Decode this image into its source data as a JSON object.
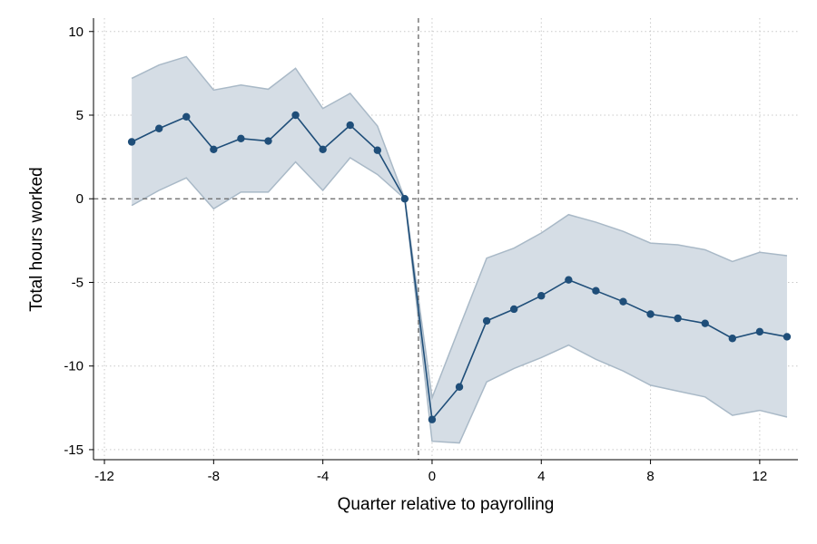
{
  "chart_data": {
    "type": "line",
    "xlabel": "Quarter relative to payrolling",
    "ylabel": "Total hours worked",
    "xlim": [
      -12.4,
      13.4
    ],
    "ylim": [
      -15.6,
      10.8
    ],
    "xticks": [
      -12,
      -8,
      -4,
      0,
      4,
      8,
      12
    ],
    "yticks": [
      10,
      5,
      0,
      -5,
      -10,
      -15
    ],
    "xtick_labels": [
      "-12",
      "-8",
      "-4",
      "0",
      "4",
      "8",
      "12"
    ],
    "ytick_labels": [
      "10",
      "5",
      "0",
      "-5",
      "-10",
      "-15"
    ],
    "vertical_reference_x": -0.5,
    "horizontal_reference_y": 0,
    "grid": true,
    "colors": {
      "line": "#1f4e79",
      "band_fill": "#d5dde5",
      "band_edge": "#a9b9c7",
      "reference": "#666666"
    },
    "series": [
      {
        "x": [
          -11,
          -10,
          -9,
          -8,
          -7,
          -6,
          -5,
          -4,
          -3,
          -2,
          -1,
          0,
          1,
          2,
          3,
          4,
          5,
          6,
          7,
          8,
          9,
          10,
          11,
          12,
          13
        ],
        "values": [
          3.4,
          4.2,
          4.9,
          2.95,
          3.6,
          3.45,
          5.0,
          2.95,
          4.4,
          2.9,
          0.0,
          -13.2,
          -11.25,
          -7.3,
          -6.6,
          -5.8,
          -4.85,
          -5.5,
          -6.15,
          -6.9,
          -7.15,
          -7.45,
          -8.35,
          -7.95,
          -8.25
        ],
        "ci_upper": [
          7.2,
          8.0,
          8.5,
          6.5,
          6.8,
          6.55,
          7.8,
          5.4,
          6.3,
          4.35,
          0.0,
          -11.9,
          -7.7,
          -3.55,
          -2.95,
          -2.05,
          -0.95,
          -1.4,
          -1.95,
          -2.65,
          -2.75,
          -3.05,
          -3.75,
          -3.2,
          -3.4
        ],
        "ci_lower": [
          -0.4,
          0.5,
          1.25,
          -0.6,
          0.4,
          0.4,
          2.2,
          0.5,
          2.45,
          1.45,
          0.0,
          -14.5,
          -14.6,
          -10.95,
          -10.15,
          -9.5,
          -8.75,
          -9.6,
          -10.3,
          -11.15,
          -11.5,
          -11.85,
          -12.95,
          -12.65,
          -13.05
        ]
      }
    ]
  }
}
